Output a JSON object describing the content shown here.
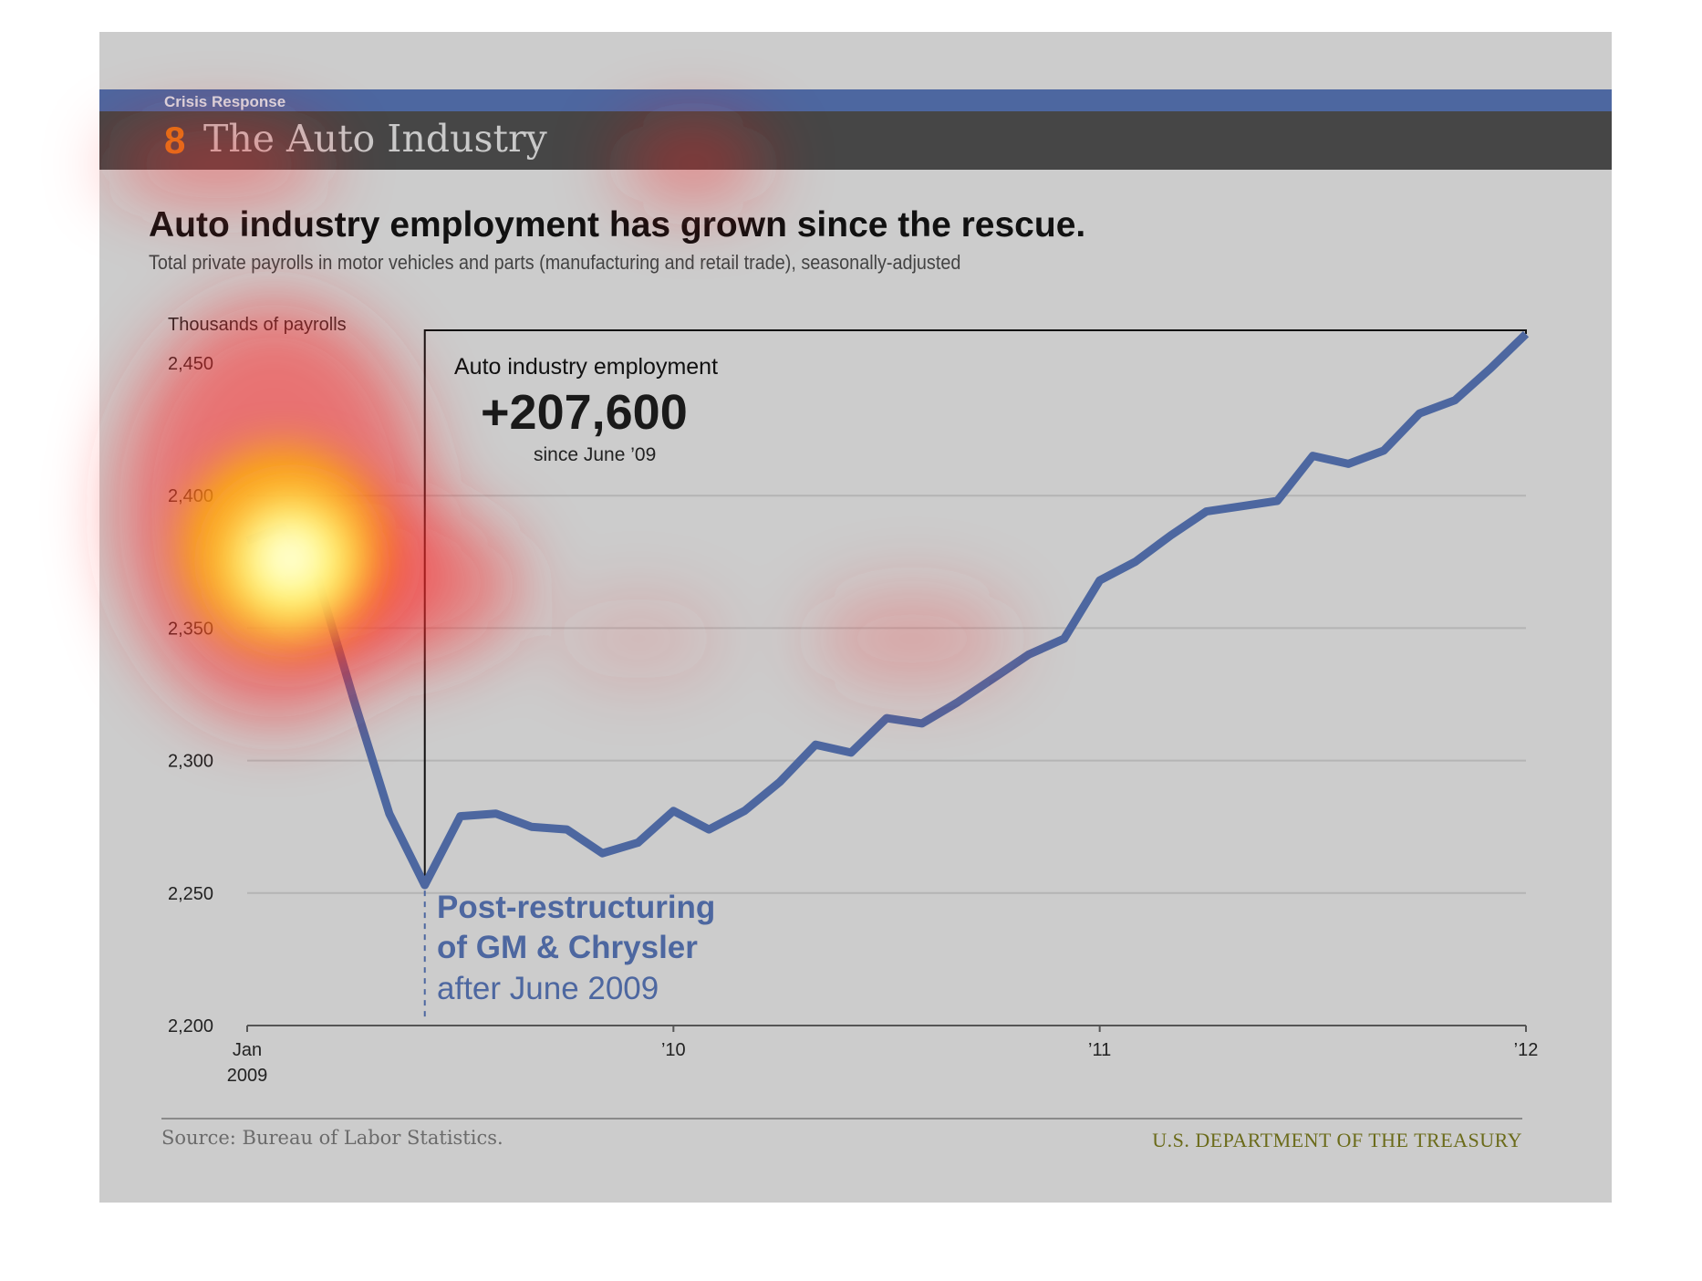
{
  "header": {
    "kicker": "Crisis Response",
    "section_number": "8",
    "section_title": "The Auto Industry"
  },
  "headline": "Auto industry employment has grown since the rescue.",
  "subheadline": "Total private payrolls in motor vehicles and parts (manufacturing and retail trade), seasonally-adjusted",
  "callout": {
    "label": "Auto industry employment",
    "value": "+207,600",
    "since": "since June ’09"
  },
  "annotation": {
    "line1": "Post-restructuring",
    "line2": "of GM & Chrysler",
    "line3": "after June 2009"
  },
  "footer": {
    "source": "Source: Bureau of Labor Statistics.",
    "agency": "U.S. DEPARTMENT OF THE TREASURY"
  },
  "colors": {
    "series": "#4d67a0",
    "title_bar": "#464646",
    "kicker_bar": "#4d67a0",
    "section_number": "#e07b12",
    "annotation": "#4d67a0",
    "agency": "#6b6b1a"
  },
  "chart_data": {
    "type": "line",
    "ylabel": "Thousands of payrolls",
    "ylim": [
      2200,
      2465
    ],
    "yticks": [
      2200,
      2250,
      2300,
      2350,
      2400,
      2450
    ],
    "ytick_labels": [
      "2,200",
      "2,250",
      "2,300",
      "2,350",
      "2,400",
      "2,450"
    ],
    "xticks": [
      {
        "label": "Jan",
        "label2": "2009",
        "month_index": 0
      },
      {
        "label": "’10",
        "label2": "",
        "month_index": 12
      },
      {
        "label": "’11",
        "label2": "",
        "month_index": 24
      },
      {
        "label": "’12",
        "label2": "",
        "month_index": 36
      }
    ],
    "grid": true,
    "grid_values": [
      2250,
      2300,
      2350,
      2400
    ],
    "marker_month_index": 5,
    "series": [
      {
        "x": [
          "2009-01",
          "2009-02",
          "2009-03",
          "2009-04",
          "2009-05",
          "2009-06",
          "2009-07",
          "2009-08",
          "2009-09",
          "2009-10",
          "2009-11",
          "2009-12",
          "2010-01",
          "2010-02",
          "2010-03",
          "2010-04",
          "2010-05",
          "2010-06",
          "2010-07",
          "2010-08",
          "2010-09",
          "2010-10",
          "2010-11",
          "2010-12",
          "2011-01",
          "2011-02",
          "2011-03",
          "2011-04",
          "2011-05",
          "2011-06",
          "2011-07",
          "2011-08",
          "2011-09",
          "2011-10",
          "2011-11",
          "2011-12",
          "2012-01"
        ],
        "values": [
          2383,
          2388,
          2368,
          2323,
          2280,
          2253,
          2279,
          2280,
          2275,
          2274,
          2265,
          2269,
          2281,
          2274,
          2281,
          2292,
          2306,
          2303,
          2316,
          2314,
          2322,
          2331,
          2340,
          2346,
          2368,
          2375,
          2385,
          2394,
          2396,
          2398,
          2415,
          2412,
          2417,
          2431,
          2436,
          2448,
          2461
        ]
      }
    ]
  }
}
